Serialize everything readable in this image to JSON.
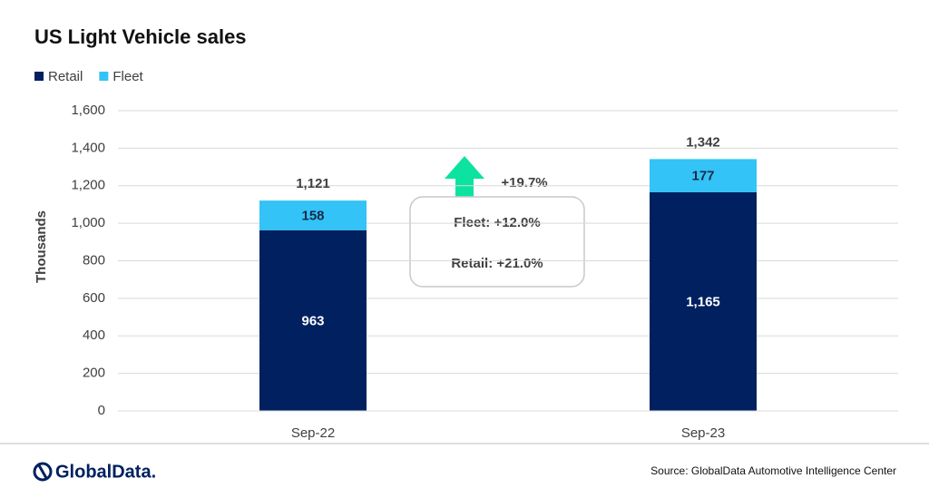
{
  "chart_data": {
    "type": "stacked_bar",
    "title": "US Light Vehicle sales",
    "y_label": "Thousands",
    "categories": [
      "Sep-22",
      "Sep-23"
    ],
    "series": [
      {
        "name": "Retail",
        "color": "#002060",
        "values": [
          963,
          1165
        ],
        "value_labels": [
          "963",
          "1,165"
        ]
      },
      {
        "name": "Fleet",
        "color": "#33c3f6",
        "values": [
          158,
          177
        ]
      }
    ],
    "totals": {
      "values": [
        1121,
        1342
      ],
      "value_labels": [
        "1,121",
        "1,342"
      ]
    },
    "ylim": [
      0,
      1600
    ],
    "yticks": [
      0,
      200,
      400,
      600,
      800,
      {
        "value": 1000,
        "label": "1,000"
      },
      {
        "value": 1200,
        "label": "1,200"
      },
      {
        "value": 1400,
        "label": "1,400"
      },
      {
        "value": 1600,
        "label": "1,600"
      }
    ],
    "grid": true,
    "annotations": {
      "change": "+19.7%",
      "fleet_change": "Fleet: +12.0%",
      "retail_change": "Retail: +21.0%"
    },
    "source": "Source: GlobalData Automotive  Intelligence Center",
    "logo": "GlobalData."
  }
}
